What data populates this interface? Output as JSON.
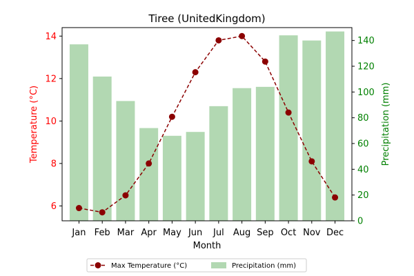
{
  "chart_data": {
    "type": "bar+line",
    "title": "Tiree (UnitedKingdom)",
    "xlabel": "Month",
    "categories": [
      "Jan",
      "Feb",
      "Mar",
      "Apr",
      "May",
      "Jun",
      "Jul",
      "Aug",
      "Sep",
      "Oct",
      "Nov",
      "Dec"
    ],
    "left_axis": {
      "label": "Temperature (°C)",
      "color": "#ff0000",
      "range": [
        5.3,
        14.4
      ],
      "ticks": [
        6,
        8,
        10,
        12,
        14
      ]
    },
    "right_axis": {
      "label": "Precipitation (mm)",
      "color": "#008000",
      "range": [
        0,
        150
      ],
      "ticks": [
        0,
        20,
        40,
        60,
        80,
        100,
        120,
        140
      ]
    },
    "series": [
      {
        "name": "Max Temperature (°C)",
        "kind": "line",
        "axis": "left",
        "color": "#8b0000",
        "style": "dashed",
        "marker": "circle",
        "values": [
          5.9,
          5.7,
          6.5,
          8.0,
          10.2,
          12.3,
          13.8,
          14.0,
          12.8,
          10.4,
          8.1,
          6.4
        ]
      },
      {
        "name": "Precipitation (mm)",
        "kind": "bar",
        "axis": "right",
        "color": "#b2d8b2",
        "values": [
          137,
          112,
          93,
          72,
          66,
          69,
          89,
          103,
          104,
          144,
          140,
          147
        ]
      }
    ],
    "legend": {
      "placement": "bottom-center",
      "ncol": 2
    }
  }
}
